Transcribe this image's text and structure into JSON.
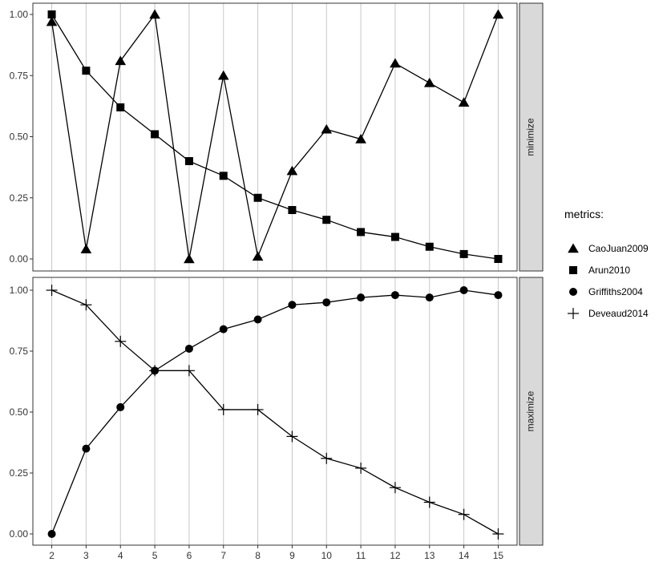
{
  "chart_data": {
    "type": "line",
    "x": [
      2,
      3,
      4,
      5,
      6,
      7,
      8,
      9,
      10,
      11,
      12,
      13,
      14,
      15
    ],
    "xticks": [
      "2",
      "3",
      "4",
      "5",
      "6",
      "7",
      "8",
      "9",
      "10",
      "11",
      "12",
      "13",
      "14",
      "15"
    ],
    "yticks": [
      "0.00",
      "0.25",
      "0.50",
      "0.75",
      "1.00"
    ],
    "ylim": [
      0,
      1
    ],
    "grid": "vertical major lines",
    "legend": {
      "title": "metrics:",
      "placement": "right",
      "entries": [
        {
          "label": "CaoJuan2009",
          "shape": "triangle"
        },
        {
          "label": "Arun2010",
          "shape": "square"
        },
        {
          "label": "Griffiths2004",
          "shape": "circle"
        },
        {
          "label": "Deveaud2014",
          "shape": "plus"
        }
      ]
    },
    "panels": [
      {
        "strip_label": "minimize",
        "series": [
          {
            "name": "CaoJuan2009",
            "shape": "triangle",
            "values": [
              0.97,
              0.04,
              0.81,
              1.0,
              0.0,
              0.75,
              0.01,
              0.36,
              0.53,
              0.49,
              0.8,
              0.72,
              0.64,
              1.0
            ]
          },
          {
            "name": "Arun2010",
            "shape": "square",
            "values": [
              1.0,
              0.77,
              0.62,
              0.51,
              0.4,
              0.34,
              0.25,
              0.2,
              0.16,
              0.11,
              0.09,
              0.05,
              0.02,
              0.0
            ]
          }
        ]
      },
      {
        "strip_label": "maximize",
        "series": [
          {
            "name": "Griffiths2004",
            "shape": "circle",
            "values": [
              0.0,
              0.35,
              0.52,
              0.67,
              0.76,
              0.84,
              0.88,
              0.94,
              0.95,
              0.97,
              0.98,
              0.97,
              1.0,
              0.98
            ]
          },
          {
            "name": "Deveaud2014",
            "shape": "plus",
            "values": [
              1.0,
              0.94,
              0.79,
              0.67,
              0.67,
              0.51,
              0.51,
              0.4,
              0.31,
              0.27,
              0.19,
              0.13,
              0.08,
              0.0
            ]
          }
        ]
      }
    ]
  }
}
